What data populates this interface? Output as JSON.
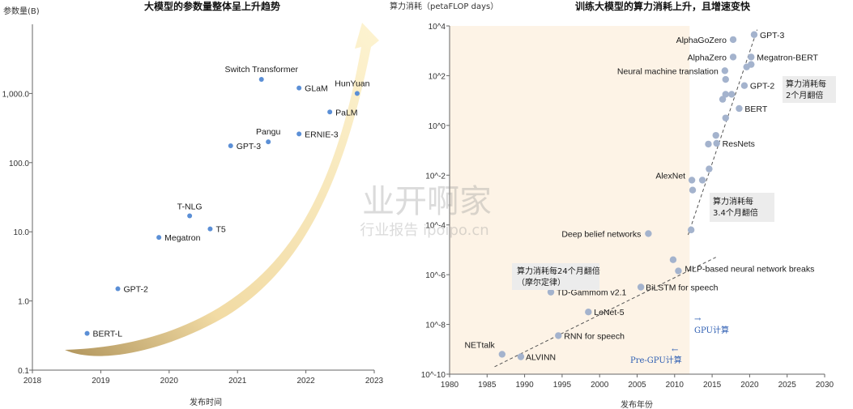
{
  "chart_data": [
    {
      "type": "scatter",
      "title": "大模型的参数量整体呈上升趋势",
      "xlabel": "发布时间",
      "ylabel": "参数量(B)",
      "xlim": [
        2018,
        2023
      ],
      "ylim": [
        0.1,
        10000
      ],
      "yscale": "log",
      "x_ticks": [
        "2018",
        "2019",
        "2020",
        "2021",
        "2022",
        "2023"
      ],
      "y_ticks": [
        "0.1",
        "1.0",
        "10.0",
        "100.0",
        "1,000.0"
      ],
      "point_color": "#5b8fd6",
      "trend_color": "#f3d98a",
      "points": [
        {
          "label": "BERT-L",
          "x": 2018.8,
          "y": 0.34
        },
        {
          "label": "GPT-2",
          "x": 2019.25,
          "y": 1.5
        },
        {
          "label": "Megatron",
          "x": 2019.85,
          "y": 8.3
        },
        {
          "label": "T-NLG",
          "x": 2020.3,
          "y": 17
        },
        {
          "label": "T5",
          "x": 2020.6,
          "y": 11
        },
        {
          "label": "GPT-3",
          "x": 2020.9,
          "y": 175
        },
        {
          "label": "Pangu",
          "x": 2021.45,
          "y": 200
        },
        {
          "label": "ERNIE-3",
          "x": 2021.9,
          "y": 260
        },
        {
          "label": "Switch Transformer",
          "x": 2021.35,
          "y": 1600
        },
        {
          "label": "GLaM",
          "x": 2021.9,
          "y": 1200
        },
        {
          "label": "PaLM",
          "x": 2022.35,
          "y": 540
        },
        {
          "label": "HunYuan",
          "x": 2022.75,
          "y": 1000
        }
      ]
    },
    {
      "type": "scatter",
      "title": "训练大模型的算力消耗上升，且增速变快",
      "xlabel": "发布年份",
      "ylabel": "算力消耗（petaFLOP days）",
      "xlim": [
        1980,
        2030
      ],
      "ylim": [
        -10,
        4
      ],
      "yscale": "log",
      "x_ticks": [
        "1980",
        "1985",
        "1990",
        "1995",
        "2000",
        "2005",
        "2010",
        "2015",
        "2020",
        "2025",
        "2030"
      ],
      "y_ticks": [
        "10^-10",
        "10^-8",
        "10^-6",
        "10^-4",
        "10^-2",
        "10^0",
        "10^2",
        "10^4"
      ],
      "shaded_region": {
        "x": [
          1980,
          2012
        ],
        "color": "#fdf3e6"
      },
      "point_color": "#a4b3cd",
      "points": [
        {
          "label": "NETtalk",
          "x": 1987,
          "y": -9.2
        },
        {
          "label": "ALVINN",
          "x": 1989.5,
          "y": -9.3
        },
        {
          "label": "RNN for speech",
          "x": 1994.5,
          "y": -8.45
        },
        {
          "label": "LeNet-5",
          "x": 1998.5,
          "y": -7.5
        },
        {
          "label": "TD-Gammom v2.1",
          "x": 1993.5,
          "y": -6.7
        },
        {
          "label": "BiLSTM for speech",
          "x": 2005.5,
          "y": -6.5
        },
        {
          "label": "MLP-based neural network breaks",
          "x": 2010.5,
          "y": -5.85
        },
        {
          "label": "",
          "x": 2009.8,
          "y": -5.4
        },
        {
          "label": "Deep belief networks",
          "x": 2006.5,
          "y": -4.35
        },
        {
          "label": "",
          "x": 2012.2,
          "y": -4.2
        },
        {
          "label": "AlexNet",
          "x": 2012.3,
          "y": -2.2
        },
        {
          "label": "",
          "x": 2012.4,
          "y": -2.6
        },
        {
          "label": "",
          "x": 2013.7,
          "y": -2.2
        },
        {
          "label": "",
          "x": 2014.6,
          "y": -1.75
        },
        {
          "label": "",
          "x": 2014.5,
          "y": -0.75
        },
        {
          "label": "",
          "x": 2015.5,
          "y": -0.4
        },
        {
          "label": "ResNets",
          "x": 2015.6,
          "y": -0.72
        },
        {
          "label": "",
          "x": 2016.8,
          "y": 0.3
        },
        {
          "label": "",
          "x": 2016.4,
          "y": 1.05
        },
        {
          "label": "BERT",
          "x": 2018.6,
          "y": 0.68
        },
        {
          "label": "",
          "x": 2017.6,
          "y": 1.25
        },
        {
          "label": "",
          "x": 2016.8,
          "y": 1.25
        },
        {
          "label": "GPT-2",
          "x": 2019.3,
          "y": 1.6
        },
        {
          "label": "",
          "x": 2016.8,
          "y": 1.85
        },
        {
          "label": "Neural machine translation",
          "x": 2016.7,
          "y": 2.2
        },
        {
          "label": "",
          "x": 2019.6,
          "y": 2.35
        },
        {
          "label": "AlphaZero",
          "x": 2017.8,
          "y": 2.75
        },
        {
          "label": "Megatron-BERT",
          "x": 2020.2,
          "y": 2.75
        },
        {
          "label": "",
          "x": 2020.2,
          "y": 2.45
        },
        {
          "label": "AlphaGoZero",
          "x": 2017.8,
          "y": 3.45
        },
        {
          "label": "GPT-3",
          "x": 2020.6,
          "y": 3.65
        }
      ],
      "annotations": [
        {
          "text": "算力消耗每",
          "text2": "2个月翻倍"
        },
        {
          "text": "算力消耗每",
          "text2": "3.4个月翻倍"
        },
        {
          "text": "算力消耗每24个月翻倍",
          "text2": "（摩尔定律）"
        },
        {
          "text": "GPU计算",
          "arrow": "→"
        },
        {
          "text": "Pre-GPU计算",
          "arrow": "←"
        }
      ]
    }
  ],
  "watermark": {
    "main": "业开啊家",
    "sub": "行业报告 ipoipo.cn"
  }
}
